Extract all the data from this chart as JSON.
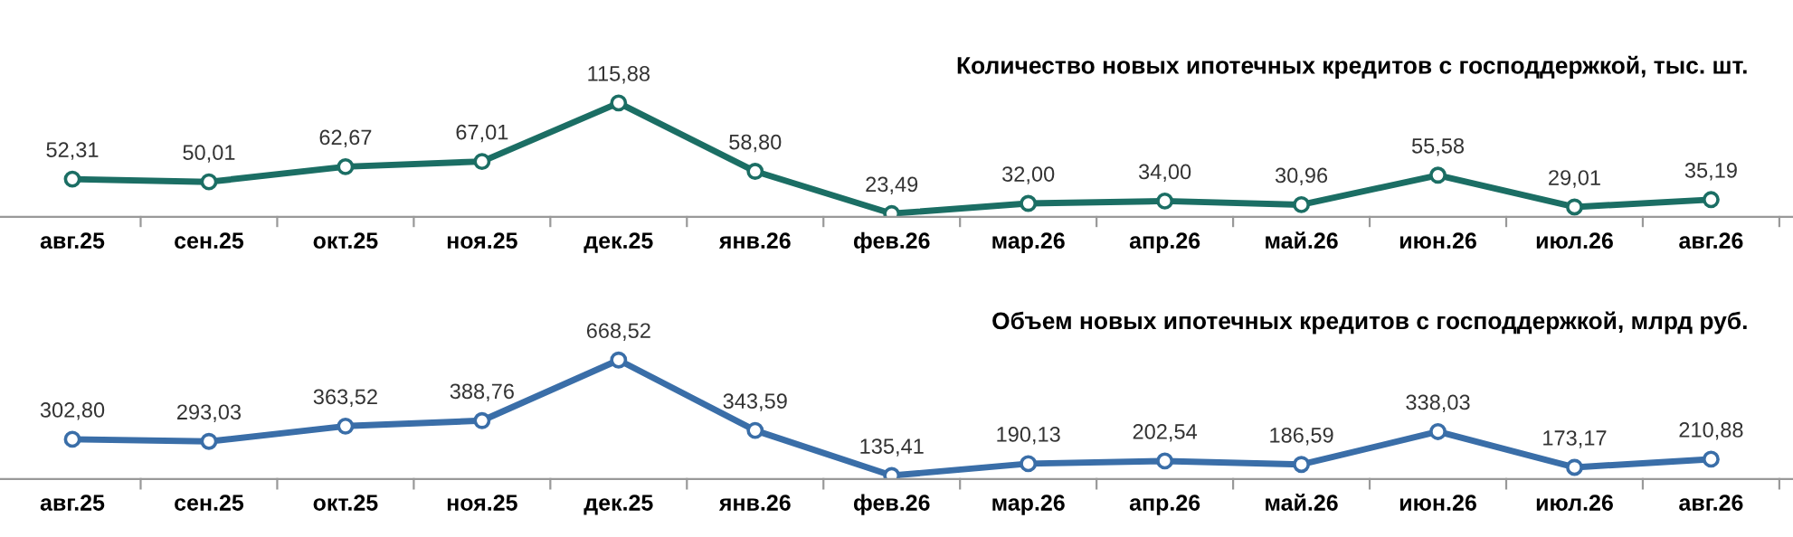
{
  "chart_data": [
    {
      "type": "line",
      "title": "Количество новых ипотечных кредитов с господдержкой, тыс. шт.",
      "categories": [
        "авг.25",
        "сен.25",
        "окт.25",
        "ноя.25",
        "дек.25",
        "янв.26",
        "фев.26",
        "мар.26",
        "апр.26",
        "май.26",
        "июн.26",
        "июл.26",
        "авг.26"
      ],
      "marker": "circle",
      "grid": false,
      "legend": false,
      "series": [
        {
          "color": "#1b6e64",
          "values": [
            52.31,
            50.01,
            62.67,
            67.01,
            115.88,
            58.8,
            23.49,
            32.0,
            34.0,
            30.96,
            55.58,
            29.01,
            35.19
          ],
          "value_labels": [
            "52,31",
            "50,01",
            "62,67",
            "67,01",
            "115,88",
            "58,80",
            "23,49",
            "32,00",
            "34,00",
            "30,96",
            "55,58",
            "29,01",
            "35,19"
          ]
        }
      ]
    },
    {
      "type": "line",
      "title": "Объем новых ипотечных кредитов с господдержкой, млрд руб.",
      "categories": [
        "авг.25",
        "сен.25",
        "окт.25",
        "ноя.25",
        "дек.25",
        "янв.26",
        "фев.26",
        "мар.26",
        "апр.26",
        "май.26",
        "июн.26",
        "июл.26",
        "авг.26"
      ],
      "marker": "circle",
      "grid": false,
      "legend": false,
      "series": [
        {
          "color": "#3a6ea8",
          "values": [
            302.8,
            293.03,
            363.52,
            388.76,
            668.52,
            343.59,
            135.41,
            190.13,
            202.54,
            186.59,
            338.03,
            173.17,
            210.88
          ],
          "value_labels": [
            "302,80",
            "293,03",
            "363,52",
            "388,76",
            "668,52",
            "343,59",
            "135,41",
            "190,13",
            "202,54",
            "186,59",
            "338,03",
            "173,17",
            "210,88"
          ]
        }
      ]
    }
  ]
}
